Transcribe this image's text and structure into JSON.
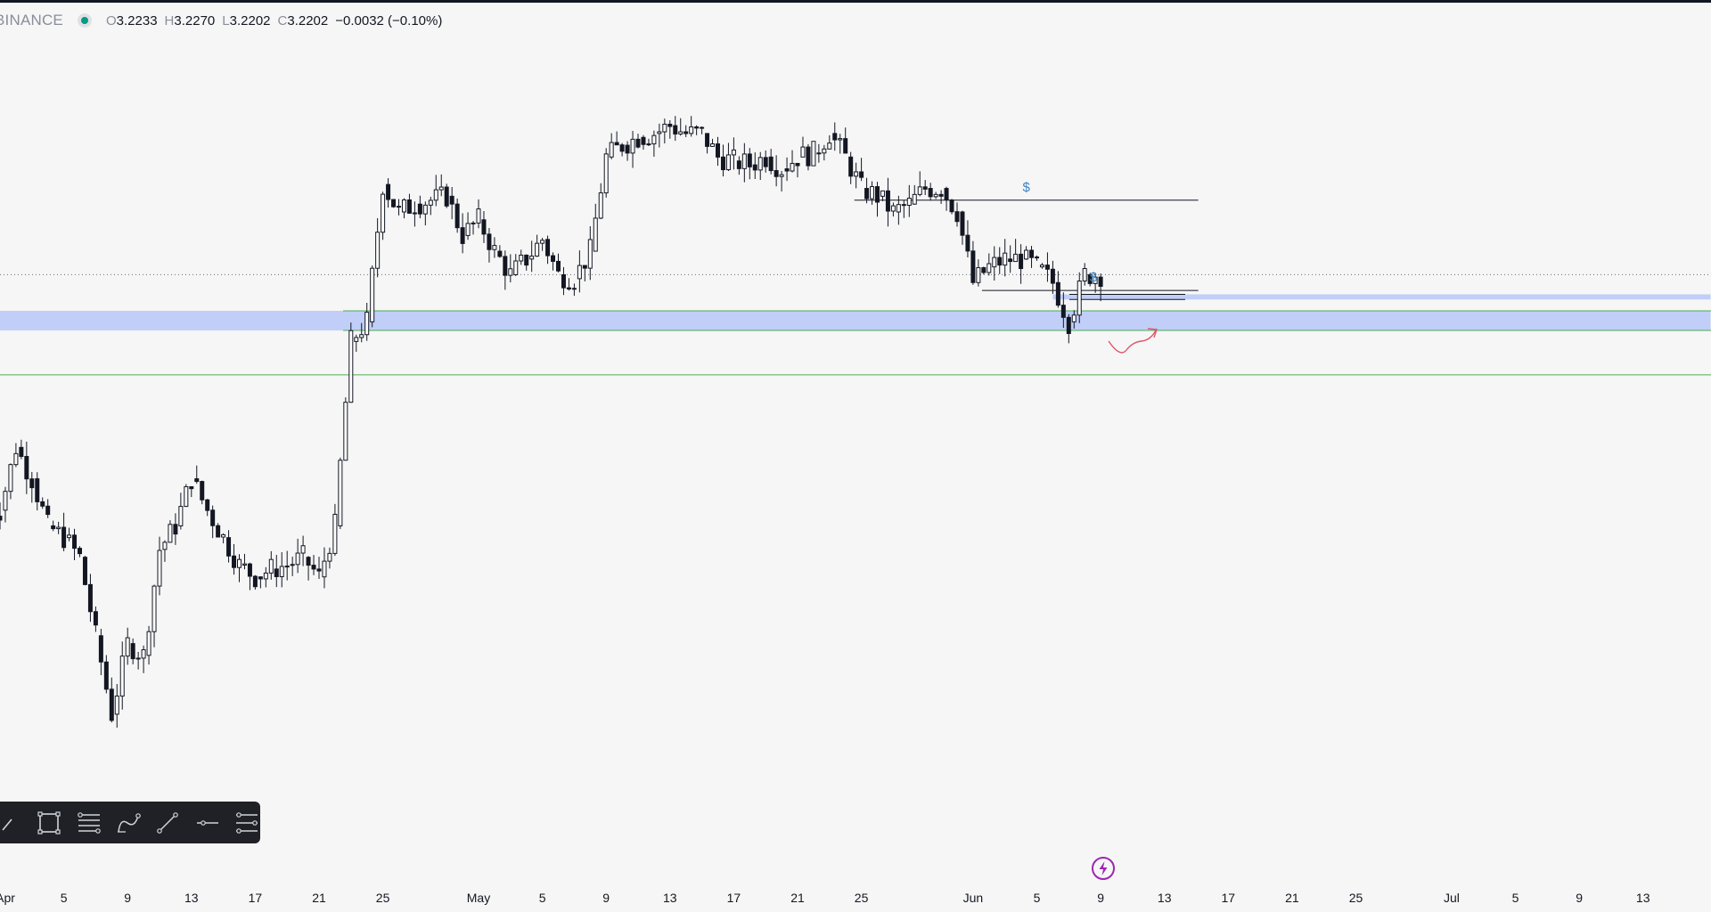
{
  "legend": {
    "symbol": "BINANCE",
    "open_label": "O",
    "open": "3.2233",
    "high_label": "H",
    "high": "3.2270",
    "low_label": "L",
    "low": "3.2202",
    "close_label": "C",
    "close": "3.2202",
    "change": "−0.0032 (−0.10%)"
  },
  "colors": {
    "background": "#f6f6f6",
    "candle": "#131722",
    "zone_fill": "#c0cef8",
    "zone_line": "#4caf50",
    "liquidity_line": "#131722",
    "liquidity_marker": "#3b82c4",
    "projection_arrow": "#e0566b",
    "alert_icon": "#9c27b0"
  },
  "chart_data": {
    "type": "candlestick",
    "x_axis": {
      "tick_labels": [
        "Apr",
        "5",
        "9",
        "13",
        "17",
        "21",
        "25",
        "May",
        "5",
        "9",
        "13",
        "17",
        "21",
        "25",
        "Jun",
        "5",
        "9",
        "13",
        "17",
        "21",
        "25",
        "Jul",
        "5",
        "9",
        "13"
      ],
      "range": [
        "Apr 1",
        "Jul 15"
      ]
    },
    "y_axis": {
      "visible": false,
      "current_price": 3.2202
    },
    "series": [
      {
        "points": [
          {
            "date": "Apr 1",
            "close": 2.62
          },
          {
            "date": "Apr 2",
            "close": 2.78
          },
          {
            "date": "Apr 3",
            "close": 2.7
          },
          {
            "date": "Apr 4",
            "close": 2.58
          },
          {
            "date": "Apr 5",
            "close": 2.55
          },
          {
            "date": "Apr 6",
            "close": 2.5
          },
          {
            "date": "Apr 7",
            "close": 2.3
          },
          {
            "date": "Apr 8",
            "close": 2.1
          },
          {
            "date": "Apr 9",
            "close": 2.28
          },
          {
            "date": "Apr 10",
            "close": 2.25
          },
          {
            "date": "Apr 11",
            "close": 2.52
          },
          {
            "date": "Apr 12",
            "close": 2.58
          },
          {
            "date": "Apr 13",
            "close": 2.7
          },
          {
            "date": "Apr 14",
            "close": 2.62
          },
          {
            "date": "Apr 15",
            "close": 2.55
          },
          {
            "date": "Apr 16",
            "close": 2.48
          },
          {
            "date": "Apr 17",
            "close": 2.45
          },
          {
            "date": "Apr 18",
            "close": 2.47
          },
          {
            "date": "Apr 19",
            "close": 2.48
          },
          {
            "date": "Apr 20",
            "close": 2.5
          },
          {
            "date": "Apr 21",
            "close": 2.45
          },
          {
            "date": "Apr 22",
            "close": 2.58
          },
          {
            "date": "Apr 23",
            "close": 3.05
          },
          {
            "date": "Apr 24",
            "close": 3.1
          },
          {
            "date": "Apr 25",
            "close": 3.45
          },
          {
            "date": "Apr 26",
            "close": 3.38
          },
          {
            "date": "Apr 27",
            "close": 3.4
          },
          {
            "date": "Apr 28",
            "close": 3.41
          },
          {
            "date": "Apr 29",
            "close": 3.42
          },
          {
            "date": "Apr 30",
            "close": 3.32
          },
          {
            "date": "May 1",
            "close": 3.36
          },
          {
            "date": "May 2",
            "close": 3.28
          },
          {
            "date": "May 3",
            "close": 3.22
          },
          {
            "date": "May 4",
            "close": 3.26
          },
          {
            "date": "May 5",
            "close": 3.31
          },
          {
            "date": "May 6",
            "close": 3.22
          },
          {
            "date": "May 7",
            "close": 3.21
          },
          {
            "date": "May 8",
            "close": 3.28
          },
          {
            "date": "May 9",
            "close": 3.52
          },
          {
            "date": "May 10",
            "close": 3.55
          },
          {
            "date": "May 11",
            "close": 3.57
          },
          {
            "date": "May 12",
            "close": 3.58
          },
          {
            "date": "May 13",
            "close": 3.6
          },
          {
            "date": "May 14",
            "close": 3.58
          },
          {
            "date": "May 15",
            "close": 3.58
          },
          {
            "date": "May 16",
            "close": 3.52
          },
          {
            "date": "May 17",
            "close": 3.51
          },
          {
            "date": "May 18",
            "close": 3.5
          },
          {
            "date": "May 19",
            "close": 3.52
          },
          {
            "date": "May 20",
            "close": 3.49
          },
          {
            "date": "May 21",
            "close": 3.52
          },
          {
            "date": "May 22",
            "close": 3.53
          },
          {
            "date": "May 23",
            "close": 3.58
          },
          {
            "date": "May 24",
            "close": 3.52
          },
          {
            "date": "May 25",
            "close": 3.44
          },
          {
            "date": "May 26",
            "close": 3.42
          },
          {
            "date": "May 27",
            "close": 3.38
          },
          {
            "date": "May 28",
            "close": 3.4
          },
          {
            "date": "May 29",
            "close": 3.44
          },
          {
            "date": "May 30",
            "close": 3.44
          },
          {
            "date": "May 31",
            "close": 3.38
          },
          {
            "date": "Jun 1",
            "close": 3.2
          },
          {
            "date": "Jun 2",
            "close": 3.24
          },
          {
            "date": "Jun 3",
            "close": 3.26
          },
          {
            "date": "Jun 4",
            "close": 3.26
          },
          {
            "date": "Jun 5",
            "close": 3.24
          },
          {
            "date": "Jun 6",
            "close": 3.2
          },
          {
            "date": "Jun 7",
            "close": 3.1
          },
          {
            "date": "Jun 8",
            "close": 3.22
          },
          {
            "date": "Jun 9",
            "close": 3.2202
          }
        ]
      }
    ],
    "annotations": [
      {
        "type": "liquidity-line",
        "label": "$",
        "price": 3.41,
        "from": "May 24",
        "to": "Jun 14"
      },
      {
        "type": "liquidity-line",
        "label": "$",
        "price": 3.18,
        "from": "Jun 1",
        "to": "Jun 14"
      },
      {
        "type": "zone",
        "price_top": 3.17,
        "price_bottom": 3.157,
        "from": "Jun 6",
        "to": "Jul 15"
      },
      {
        "type": "zone",
        "price_top": 3.128,
        "price_bottom": 3.078,
        "from": "Apr 1",
        "to": "Jul 15"
      },
      {
        "type": "horizontal-line",
        "price": 2.965
      },
      {
        "type": "projection-arrow",
        "from": "Jun 9",
        "to": "Jun 13"
      }
    ],
    "grid": false,
    "legend": "top-left"
  },
  "toolbar": {
    "tools": [
      {
        "icon": "brush-icon"
      },
      {
        "icon": "rectangle-icon"
      },
      {
        "icon": "fib-retracement-icon"
      },
      {
        "icon": "curve-icon"
      },
      {
        "icon": "trend-line-icon"
      },
      {
        "icon": "horizontal-ray-icon"
      },
      {
        "icon": "parallel-channel-icon"
      }
    ]
  }
}
